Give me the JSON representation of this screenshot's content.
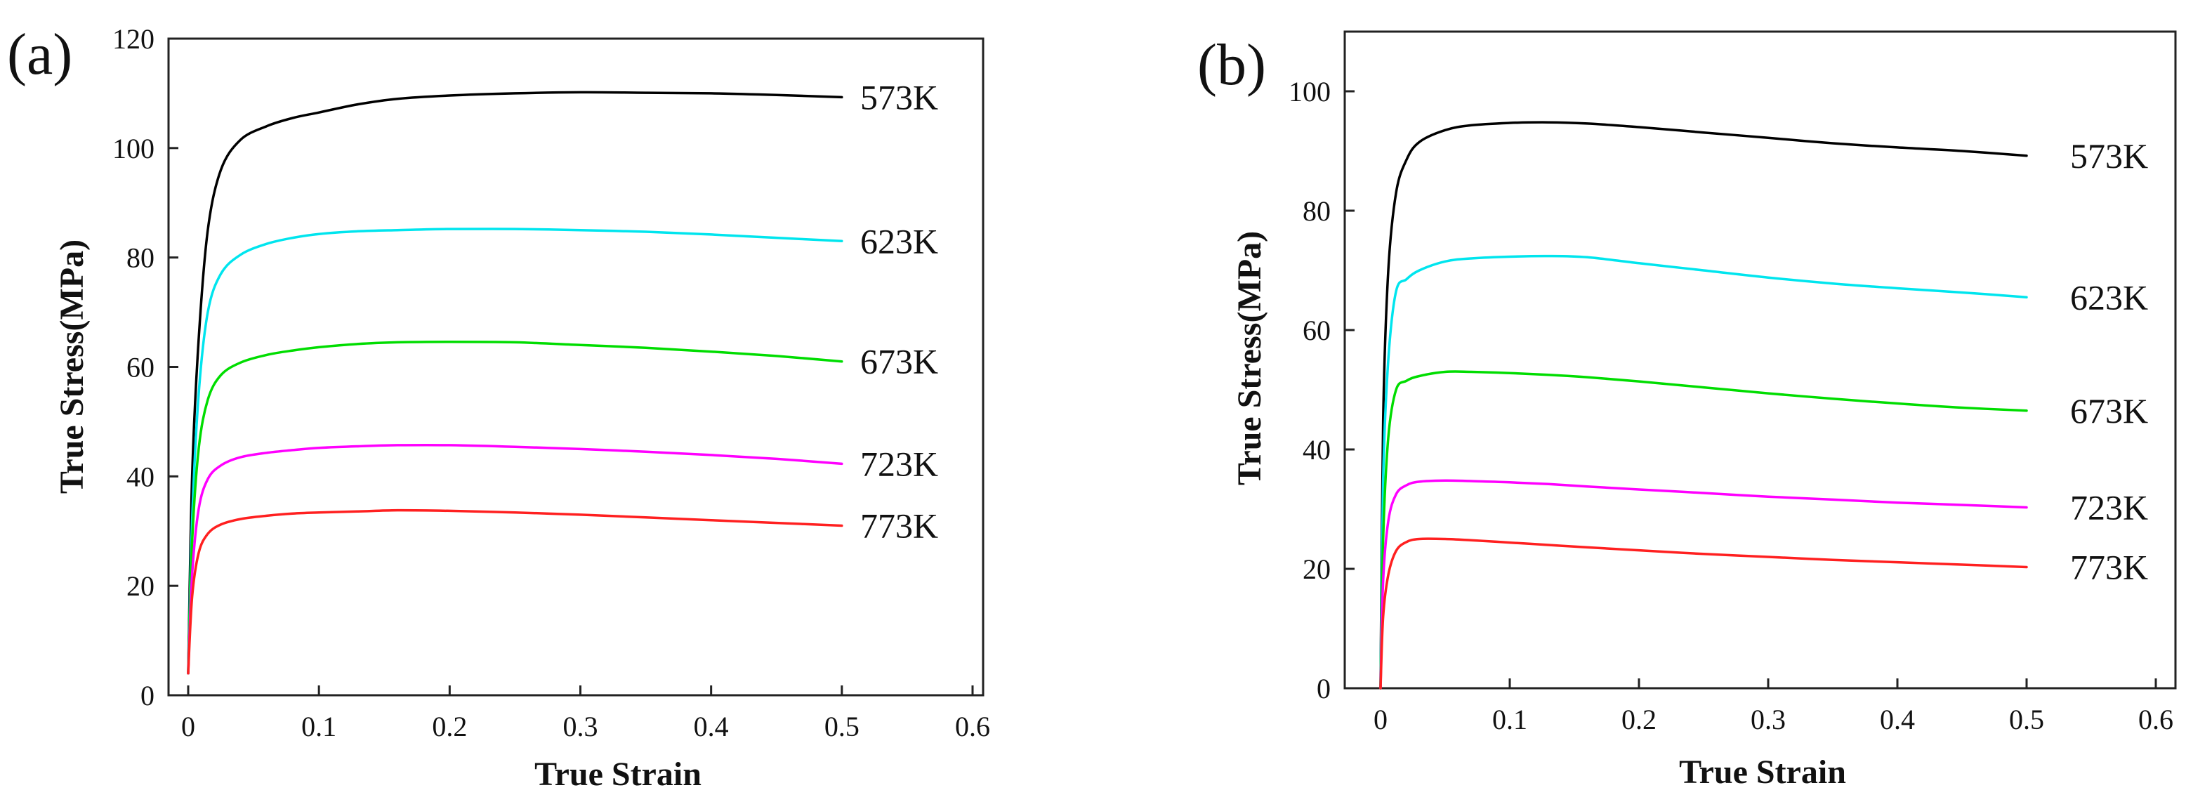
{
  "chart_data": [
    {
      "panel_label": "(a)",
      "type": "line",
      "xlabel": "True Strain",
      "ylabel": "True Stress(MPa)",
      "xlim": [
        0,
        0.6
      ],
      "ylim": [
        0,
        120
      ],
      "xticks": [
        "0",
        "0.1",
        "0.2",
        "0.3",
        "0.4",
        "0.5",
        "0.6"
      ],
      "yticks": [
        "0",
        "20",
        "40",
        "60",
        "80",
        "100",
        "120"
      ],
      "grid": false,
      "series": [
        {
          "name": "573K",
          "color": "#000000",
          "x": [
            0,
            0.003,
            0.008,
            0.015,
            0.025,
            0.04,
            0.06,
            0.08,
            0.1,
            0.13,
            0.16,
            0.2,
            0.25,
            0.3,
            0.35,
            0.4,
            0.45,
            0.5
          ],
          "y": [
            4,
            40,
            65,
            85,
            96,
            101.5,
            104,
            105.5,
            106.5,
            108,
            109,
            109.6,
            110,
            110.2,
            110.1,
            110,
            109.7,
            109.3
          ]
        },
        {
          "name": "623K",
          "color": "#00e5ee",
          "x": [
            0,
            0.003,
            0.008,
            0.015,
            0.025,
            0.04,
            0.06,
            0.08,
            0.1,
            0.13,
            0.16,
            0.2,
            0.25,
            0.3,
            0.35,
            0.4,
            0.45,
            0.5
          ],
          "y": [
            4,
            32,
            55,
            70,
            77,
            80.5,
            82.5,
            83.6,
            84.3,
            84.8,
            85,
            85.2,
            85.2,
            85,
            84.7,
            84.2,
            83.6,
            83
          ]
        },
        {
          "name": "673K",
          "color": "#00dd00",
          "x": [
            0,
            0.003,
            0.008,
            0.015,
            0.025,
            0.04,
            0.06,
            0.08,
            0.1,
            0.13,
            0.16,
            0.2,
            0.25,
            0.3,
            0.35,
            0.4,
            0.45,
            0.5
          ],
          "y": [
            4,
            28,
            45,
            54,
            58.5,
            60.8,
            62.2,
            63,
            63.6,
            64.2,
            64.5,
            64.6,
            64.5,
            64,
            63.5,
            62.8,
            62,
            61
          ]
        },
        {
          "name": "723K",
          "color": "#ff00ff",
          "x": [
            0,
            0.003,
            0.008,
            0.015,
            0.025,
            0.04,
            0.06,
            0.08,
            0.1,
            0.13,
            0.16,
            0.2,
            0.25,
            0.3,
            0.35,
            0.4,
            0.45,
            0.5
          ],
          "y": [
            4,
            22,
            34,
            39.5,
            42,
            43.5,
            44.3,
            44.8,
            45.2,
            45.5,
            45.7,
            45.7,
            45.4,
            45,
            44.5,
            43.9,
            43.2,
            42.3
          ]
        },
        {
          "name": "773K",
          "color": "#ff2020",
          "x": [
            0,
            0.003,
            0.008,
            0.015,
            0.025,
            0.04,
            0.06,
            0.08,
            0.1,
            0.13,
            0.16,
            0.2,
            0.25,
            0.3,
            0.35,
            0.4,
            0.45,
            0.5
          ],
          "y": [
            4,
            18,
            26,
            29.5,
            31.2,
            32.2,
            32.8,
            33.2,
            33.4,
            33.6,
            33.8,
            33.7,
            33.4,
            33,
            32.5,
            32,
            31.5,
            31
          ]
        }
      ]
    },
    {
      "panel_label": "(b)",
      "type": "line",
      "xlabel": "True Strain",
      "ylabel": "True Stress(MPa)",
      "xlim": [
        0,
        0.6
      ],
      "ylim": [
        0,
        110
      ],
      "xticks": [
        "0",
        "0.1",
        "0.2",
        "0.3",
        "0.4",
        "0.5",
        "0.6"
      ],
      "yticks": [
        "0",
        "20",
        "40",
        "60",
        "80",
        "100"
      ],
      "grid": false,
      "series": [
        {
          "name": "573K",
          "color": "#000000",
          "x": [
            0,
            0.002,
            0.006,
            0.012,
            0.02,
            0.03,
            0.05,
            0.07,
            0.1,
            0.13,
            0.16,
            0.2,
            0.25,
            0.3,
            0.35,
            0.4,
            0.45,
            0.5
          ],
          "y": [
            0,
            45,
            70,
            83,
            88.5,
            91.5,
            93.5,
            94.3,
            94.7,
            94.8,
            94.6,
            94,
            93.1,
            92.2,
            91.3,
            90.6,
            90,
            89.2
          ]
        },
        {
          "name": "623K",
          "color": "#00e5ee",
          "x": [
            0,
            0.002,
            0.006,
            0.012,
            0.02,
            0.03,
            0.05,
            0.07,
            0.1,
            0.13,
            0.16,
            0.2,
            0.25,
            0.3,
            0.35,
            0.4,
            0.45,
            0.5
          ],
          "y": [
            0,
            35,
            55,
            66.5,
            68.5,
            70,
            71.5,
            72,
            72.3,
            72.4,
            72.2,
            71.2,
            70,
            68.8,
            67.8,
            67,
            66.3,
            65.5
          ]
        },
        {
          "name": "673K",
          "color": "#00dd00",
          "x": [
            0,
            0.002,
            0.006,
            0.012,
            0.02,
            0.03,
            0.05,
            0.07,
            0.1,
            0.13,
            0.16,
            0.2,
            0.25,
            0.3,
            0.35,
            0.4,
            0.45,
            0.5
          ],
          "y": [
            0,
            25,
            42,
            50,
            51.5,
            52.3,
            53,
            53,
            52.8,
            52.5,
            52.1,
            51.4,
            50.4,
            49.4,
            48.5,
            47.7,
            47,
            46.5
          ]
        },
        {
          "name": "723K",
          "color": "#ff00ff",
          "x": [
            0,
            0.002,
            0.006,
            0.012,
            0.02,
            0.03,
            0.05,
            0.07,
            0.1,
            0.13,
            0.16,
            0.2,
            0.25,
            0.3,
            0.35,
            0.4,
            0.45,
            0.5
          ],
          "y": [
            0,
            18,
            28,
            32.5,
            34,
            34.6,
            34.8,
            34.7,
            34.5,
            34.2,
            33.8,
            33.3,
            32.7,
            32.1,
            31.6,
            31.1,
            30.7,
            30.3
          ]
        },
        {
          "name": "773K",
          "color": "#ff2020",
          "x": [
            0,
            0.002,
            0.006,
            0.012,
            0.02,
            0.03,
            0.05,
            0.07,
            0.1,
            0.13,
            0.16,
            0.2,
            0.25,
            0.3,
            0.35,
            0.4,
            0.45,
            0.5
          ],
          "y": [
            0,
            12,
            19,
            23,
            24.5,
            25,
            25,
            24.8,
            24.4,
            24,
            23.6,
            23.1,
            22.5,
            22,
            21.5,
            21.1,
            20.7,
            20.3
          ]
        }
      ]
    }
  ]
}
